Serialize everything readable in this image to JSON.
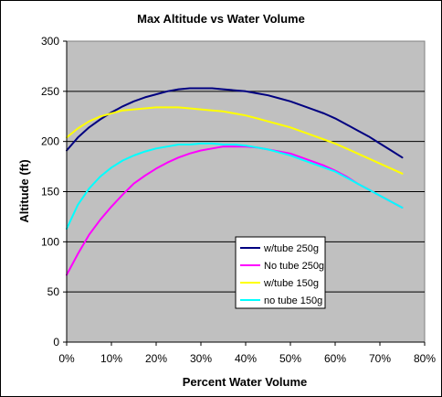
{
  "chart_data": {
    "type": "line",
    "title": "Max Altitude vs Water Volume",
    "xlabel": "Percent Water Volume",
    "ylabel": "Altitude (ft)",
    "xlim": [
      0,
      80
    ],
    "ylim": [
      0,
      300
    ],
    "x_ticks": [
      "0%",
      "10%",
      "20%",
      "30%",
      "40%",
      "50%",
      "60%",
      "70%",
      "80%"
    ],
    "y_ticks": [
      "0",
      "50",
      "100",
      "150",
      "200",
      "250",
      "300"
    ],
    "x_tick_values": [
      0,
      10,
      20,
      30,
      40,
      50,
      60,
      70,
      80
    ],
    "y_tick_values": [
      0,
      50,
      100,
      150,
      200,
      250,
      300
    ],
    "grid": "horizontal",
    "plot_background": "#c0c0c0",
    "legend_position": "lower-center",
    "x": [
      0,
      2.5,
      5,
      7.5,
      10,
      12.5,
      15,
      17.5,
      20,
      22.5,
      25,
      27.5,
      30,
      32.5,
      35,
      37.5,
      40,
      42.5,
      45,
      47.5,
      50,
      52.5,
      55,
      57.5,
      60,
      62.5,
      65,
      67.5,
      70,
      72.5,
      75
    ],
    "series": [
      {
        "name": "w/tube 250g",
        "color": "#000080",
        "values": [
          191,
          204,
          214,
          222,
          229,
          235,
          240,
          244,
          247,
          250,
          252,
          253,
          253,
          253,
          252,
          251,
          250,
          248,
          246,
          243,
          240,
          236,
          232,
          228,
          223,
          217,
          211,
          205,
          198,
          191,
          184
        ]
      },
      {
        "name": "No tube 250g",
        "color": "#ff00ff",
        "values": [
          67,
          88,
          107,
          122,
          135,
          147,
          158,
          166,
          173,
          179,
          184,
          188,
          191,
          193,
          195,
          195,
          195,
          194,
          192,
          190,
          188,
          184,
          180,
          176,
          171,
          165,
          158,
          152,
          146,
          140,
          134
        ]
      },
      {
        "name": "w/tube 150g",
        "color": "#ffff00",
        "values": [
          204,
          213,
          220,
          225,
          228,
          231,
          232,
          233,
          234,
          234,
          234,
          233,
          232,
          231,
          230,
          228,
          226,
          223,
          220,
          217,
          214,
          210,
          206,
          202,
          198,
          193,
          188,
          183,
          178,
          173,
          168
        ]
      },
      {
        "name": "no tube 150g",
        "color": "#00ffff",
        "values": [
          113,
          137,
          153,
          165,
          174,
          181,
          186,
          190,
          193,
          195,
          197,
          197,
          198,
          198,
          197,
          197,
          196,
          194,
          192,
          189,
          186,
          182,
          178,
          174,
          170,
          164,
          158,
          152,
          146,
          140,
          134
        ]
      }
    ]
  }
}
